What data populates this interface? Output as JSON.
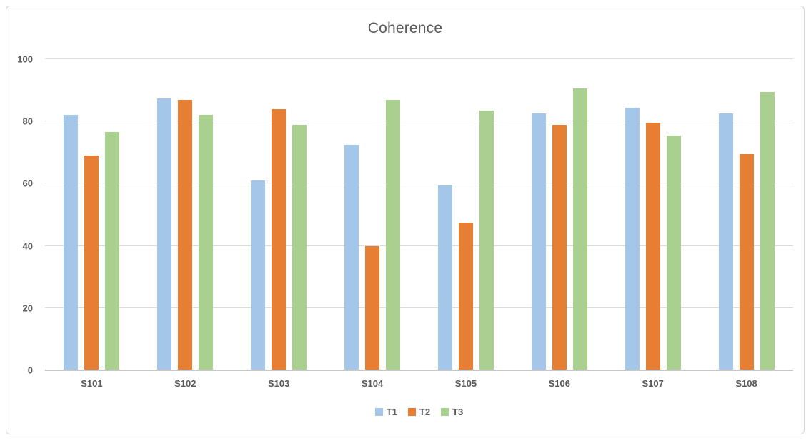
{
  "chart_data": {
    "type": "bar",
    "title": "Coherence",
    "categories": [
      "S101",
      "S102",
      "S103",
      "S104",
      "S105",
      "S106",
      "S107",
      "S108"
    ],
    "series": [
      {
        "name": "T1",
        "color": "#a4c6e8",
        "values": [
          82,
          87.5,
          61,
          72.5,
          59.5,
          82.5,
          84.5,
          82.5
        ]
      },
      {
        "name": "T2",
        "color": "#e67e33",
        "values": [
          69,
          87,
          84,
          40,
          47.5,
          79,
          79.5,
          69.5
        ]
      },
      {
        "name": "T3",
        "color": "#a9d08e",
        "values": [
          76.5,
          82,
          79,
          87,
          83.5,
          90.5,
          75.5,
          89.5
        ]
      }
    ],
    "xlabel": "",
    "ylabel": "",
    "ylim": [
      0,
      100
    ],
    "yticks": [
      0,
      20,
      40,
      60,
      80,
      100
    ],
    "grid": true,
    "legend_position": "bottom"
  },
  "style": {
    "text_color": "#595959",
    "gridline_color": "#dbdbdb",
    "axis_line_color": "#c8c8c8",
    "frame_border_color": "#d7d7d7"
  }
}
